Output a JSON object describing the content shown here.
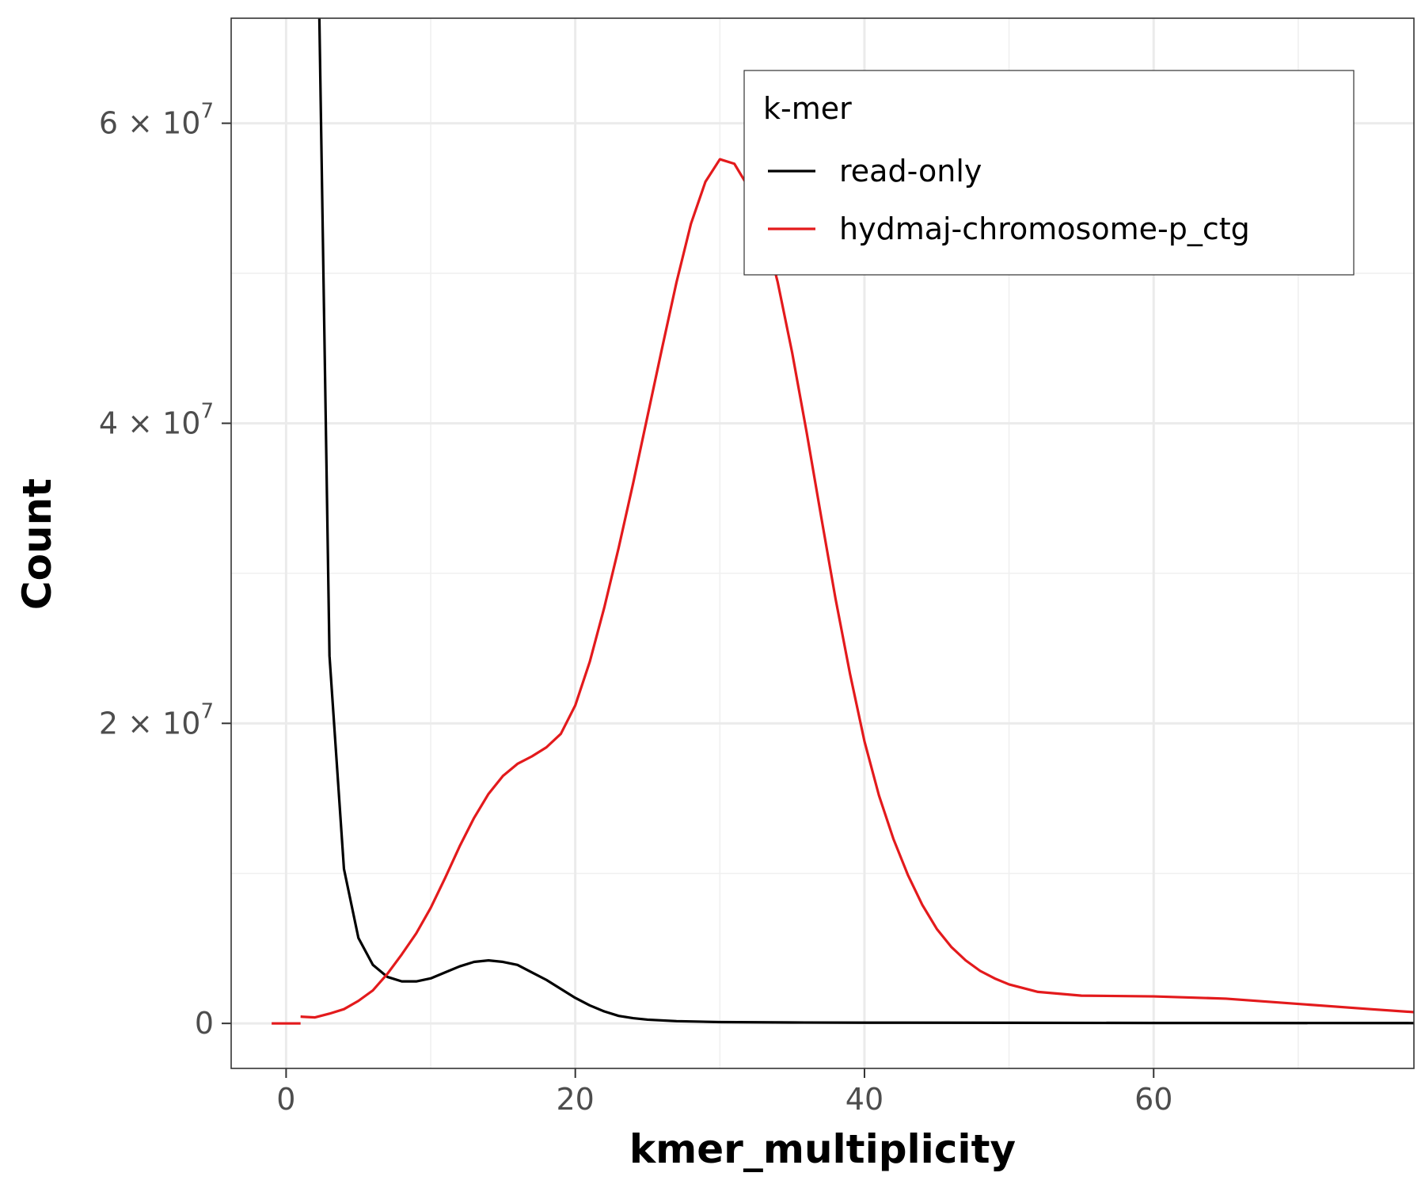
{
  "chart_data": {
    "type": "line",
    "title": "",
    "xlabel": "kmer_multiplicity",
    "ylabel": "Count",
    "xlim": [
      -3.8,
      78
    ],
    "ylim": [
      -3000000,
      67000000
    ],
    "x_ticks": [
      {
        "value": 0,
        "label": "0"
      },
      {
        "value": 20,
        "label": "20"
      },
      {
        "value": 40,
        "label": "40"
      },
      {
        "value": 60,
        "label": "60"
      }
    ],
    "x_minor_gridlines": [
      10,
      30,
      50,
      70
    ],
    "y_ticks": [
      {
        "value": 0,
        "mantissa": "0",
        "exponent": ""
      },
      {
        "value": 20000000,
        "mantissa": "2 × 10",
        "exponent": "7"
      },
      {
        "value": 40000000,
        "mantissa": "4 × 10",
        "exponent": "7"
      },
      {
        "value": 60000000,
        "mantissa": "6 × 10",
        "exponent": "7"
      }
    ],
    "y_minor_gridlines": [
      10000000,
      30000000,
      50000000
    ],
    "grid": true,
    "legend": {
      "title": "k-mer",
      "placement": "top-right"
    },
    "series": [
      {
        "name": "read-only",
        "color": "#000000",
        "points": [
          [
            2.3,
            67000000
          ],
          [
            3,
            24500000
          ],
          [
            4,
            10300000
          ],
          [
            5,
            5700000
          ],
          [
            6,
            3900000
          ],
          [
            7,
            3100000
          ],
          [
            8,
            2800000
          ],
          [
            9,
            2800000
          ],
          [
            10,
            3000000
          ],
          [
            11,
            3400000
          ],
          [
            12,
            3800000
          ],
          [
            13,
            4100000
          ],
          [
            14,
            4200000
          ],
          [
            15,
            4100000
          ],
          [
            16,
            3900000
          ],
          [
            17,
            3400000
          ],
          [
            18,
            2900000
          ],
          [
            19,
            2300000
          ],
          [
            20,
            1700000
          ],
          [
            21,
            1200000
          ],
          [
            22,
            800000
          ],
          [
            23,
            500000
          ],
          [
            24,
            350000
          ],
          [
            25,
            250000
          ],
          [
            27,
            150000
          ],
          [
            30,
            90000
          ],
          [
            35,
            60000
          ],
          [
            40,
            50000
          ],
          [
            50,
            40000
          ],
          [
            60,
            30000
          ],
          [
            78,
            20000
          ]
        ]
      },
      {
        "name": "hydmaj-chromosome-p_ctg",
        "color": "#e31a1c",
        "segments": [
          [
            [
              -1,
              0
            ],
            [
              1,
              0
            ]
          ],
          [
            [
              1,
              450000
            ],
            [
              2,
              400000
            ],
            [
              3,
              650000
            ],
            [
              4,
              950000
            ],
            [
              5,
              1500000
            ],
            [
              6,
              2200000
            ],
            [
              7,
              3300000
            ],
            [
              8,
              4600000
            ],
            [
              9,
              6000000
            ],
            [
              10,
              7700000
            ],
            [
              11,
              9700000
            ],
            [
              12,
              11800000
            ],
            [
              13,
              13700000
            ],
            [
              14,
              15300000
            ],
            [
              15,
              16500000
            ],
            [
              16,
              17300000
            ],
            [
              17,
              17800000
            ],
            [
              18,
              18400000
            ],
            [
              19,
              19300000
            ],
            [
              20,
              21200000
            ],
            [
              21,
              24100000
            ],
            [
              22,
              27700000
            ],
            [
              23,
              31700000
            ],
            [
              24,
              36000000
            ],
            [
              25,
              40500000
            ],
            [
              26,
              45000000
            ],
            [
              27,
              49400000
            ],
            [
              28,
              53300000
            ],
            [
              29,
              56100000
            ],
            [
              30,
              57600000
            ],
            [
              31,
              57300000
            ],
            [
              32,
              55700000
            ],
            [
              33,
              53200000
            ],
            [
              34,
              49400000
            ],
            [
              35,
              44700000
            ],
            [
              36,
              39400000
            ],
            [
              37,
              33800000
            ],
            [
              38,
              28300000
            ],
            [
              39,
              23300000
            ],
            [
              40,
              18800000
            ],
            [
              41,
              15200000
            ],
            [
              42,
              12300000
            ],
            [
              43,
              9900000
            ],
            [
              44,
              7900000
            ],
            [
              45,
              6300000
            ],
            [
              46,
              5100000
            ],
            [
              47,
              4200000
            ],
            [
              48,
              3500000
            ],
            [
              49,
              3000000
            ],
            [
              50,
              2600000
            ],
            [
              52,
              2100000
            ],
            [
              55,
              1850000
            ],
            [
              60,
              1800000
            ],
            [
              65,
              1650000
            ],
            [
              70,
              1300000
            ],
            [
              75,
              950000
            ],
            [
              78,
              750000
            ]
          ]
        ]
      }
    ]
  }
}
